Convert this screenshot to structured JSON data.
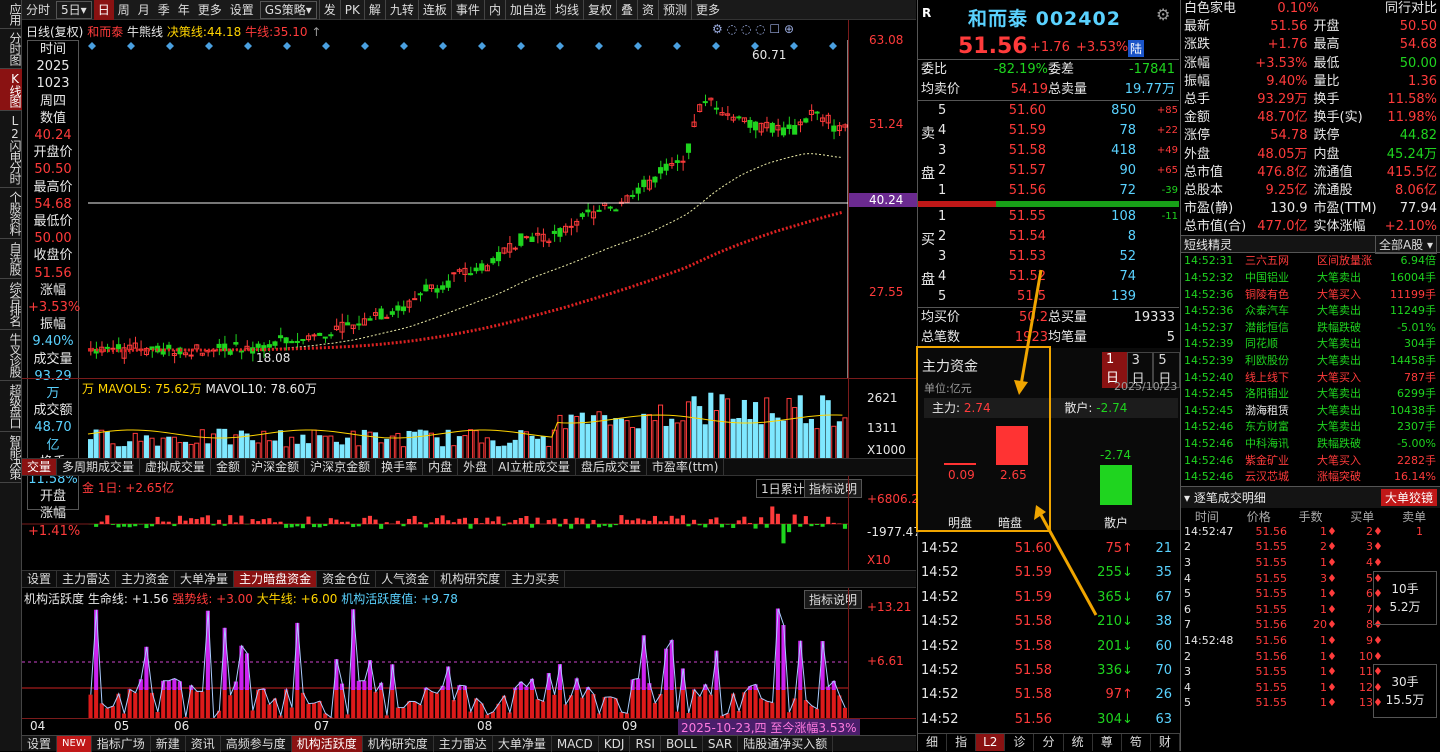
{
  "sidebar": [
    "应用",
    "分时图",
    "K线图",
    "L2闪电分时",
    "个股资料",
    "自选股",
    "综合排名",
    "牛叉诊股",
    "超级盘口",
    "智能决策"
  ],
  "toolbar": [
    "分时",
    "5日",
    "日",
    "周",
    "月",
    "季",
    "年",
    "更多",
    "设置",
    "GS策略",
    "发",
    "PK",
    "解",
    "九转",
    "连板",
    "事件",
    "内",
    "加自选",
    "均线",
    "复权",
    "叠",
    "资",
    "预测",
    "更多"
  ],
  "kline_header": {
    "prefix": "日线(复权)",
    "name": "和而泰",
    "ind1": "牛熊线",
    "ind2_label": "决策线:",
    "ind2": "44.18",
    "ind3": "牛线:",
    "ind3v": "35.10"
  },
  "price_axis": [
    "63.08",
    "51.24",
    "40.24",
    "27.55"
  ],
  "markers": {
    "high": "60.71",
    "low": "18.08"
  },
  "infobox": {
    "title": "时间",
    "date1": "2025",
    "date2": "1023",
    "weekday": "周四",
    "k1": "数值",
    "v1": "40.24",
    "k2": "开盘价",
    "v2": "50.50",
    "k3": "最高价",
    "v3": "54.68",
    "k4": "最低价",
    "v4": "50.00",
    "k5": "收盘价",
    "v5": "51.56",
    "k6": "涨幅",
    "v6": "+3.53%",
    "k7": "振幅",
    "v7": "9.40%",
    "k8": "成交量",
    "v8": "93.29万",
    "k9": "成交额",
    "v9": "48.70亿",
    "k10": "换手",
    "v10": "11.58%",
    "k11": "开盘",
    "k11b": "涨幅",
    "v11": "+1.41%"
  },
  "vol": {
    "lbl": "万",
    "ma5": "MAVOL5: 75.62万",
    "ma10": "MAVOL10: 78.60万",
    "axis": [
      "2621",
      "1311",
      "X1000"
    ]
  },
  "vol_tabs": [
    "交量",
    "多周期成交量",
    "虚拟成交量",
    "金额",
    "沪深金额",
    "沪深京金额",
    "换手率",
    "内盘",
    "外盘",
    "AI立桩成交量",
    "盘后成交量",
    "市盈率(ttm)"
  ],
  "flow": {
    "lbl": "金 1日: +2.65亿",
    "sel": "1日累计",
    "btn": "指标说明",
    "axis": [
      "+6806.27",
      "-1977.47",
      "X10"
    ]
  },
  "flow_tabs": [
    "设置",
    "主力雷达",
    "主力资金",
    "大单净量",
    "主力暗盘资金",
    "资金仓位",
    "人气资金",
    "机构研究度",
    "主力买卖"
  ],
  "act": {
    "title": "机构活跃度",
    "life": "生命线: +1.56",
    "strong": "强势线: +3.00",
    "bull": "大牛线: +6.00",
    "val": "机构活跃度值: +9.78",
    "btn": "指标说明",
    "axis": [
      "+13.21",
      "+6.61"
    ]
  },
  "xaxis": [
    "04",
    "05",
    "06",
    "07",
    "08",
    "09"
  ],
  "date_info": "2025-10-23,四 至今涨幅3.53%",
  "bottom_tabs": [
    "设置",
    "NEW",
    "指标广场",
    "新建",
    "资讯",
    "高频参与度",
    "机构活跃度",
    "机构研究度",
    "主力雷达",
    "大单净量",
    "MACD",
    "KDJ",
    "RSI",
    "BOLL",
    "SAR",
    "陆股通净买入额"
  ],
  "quote": {
    "title": "和而泰 002402",
    "price": "51.56",
    "chg": "+1.76",
    "pct": "+3.53%",
    "tag": "陆",
    "rows": [
      [
        "委比",
        "-82.19%",
        "委差",
        "-17841"
      ],
      [
        "均卖价",
        "54.19",
        "总卖量",
        "19.77万"
      ]
    ],
    "sells": [
      [
        "5",
        "51.60",
        "850",
        "+85"
      ],
      [
        "4",
        "51.59",
        "78",
        "+22"
      ],
      [
        "3",
        "51.58",
        "418",
        "+49"
      ],
      [
        "2",
        "51.57",
        "90",
        "+65"
      ],
      [
        "1",
        "51.56",
        "72",
        "-39"
      ]
    ],
    "buys": [
      [
        "1",
        "51.55",
        "108",
        "-11"
      ],
      [
        "2",
        "51.54",
        "8",
        ""
      ],
      [
        "3",
        "51.53",
        "52",
        ""
      ],
      [
        "4",
        "51.52",
        "74",
        ""
      ],
      [
        "5",
        "51.5",
        "139",
        ""
      ]
    ],
    "sell_lbl": [
      "卖",
      "盘"
    ],
    "buy_lbl": [
      "买",
      "盘"
    ],
    "rows2": [
      [
        "均买价",
        "50.2",
        "总买量",
        "19333"
      ],
      [
        "总笔数",
        "1923",
        "均笔量",
        "5"
      ]
    ]
  },
  "zl": {
    "title": "主力资金",
    "unit": "单位:亿元",
    "date": "2025/10/23",
    "tabs": [
      "1日",
      "3日",
      "5日"
    ],
    "main": "主力:",
    "mainv": "2.74",
    "retail": "散户:",
    "retailv": "-2.74",
    "v1": "0.09",
    "v2": "2.65",
    "v3": "-2.74",
    "l1": "明盘",
    "l2": "暗盘",
    "l3": "散户"
  },
  "ticks": [
    [
      "14:52",
      "51.60",
      "75",
      "21"
    ],
    [
      "14:52",
      "51.59",
      "255",
      "35"
    ],
    [
      "14:52",
      "51.59",
      "365",
      "67"
    ],
    [
      "14:52",
      "51.58",
      "210",
      "38"
    ],
    [
      "14:52",
      "51.58",
      "201",
      "60"
    ],
    [
      "14:52",
      "51.58",
      "336",
      "70"
    ],
    [
      "14:52",
      "51.58",
      "97",
      "26"
    ],
    [
      "14:52",
      "51.56",
      "304",
      "63"
    ]
  ],
  "ticks_dir": [
    "up",
    "down",
    "down",
    "down",
    "down",
    "down",
    "up",
    "down"
  ],
  "rp_tabs": [
    "细",
    "指",
    "L2",
    "诊",
    "分",
    "统",
    "尊",
    "笱",
    "财"
  ],
  "fund": [
    [
      "白色家电",
      "0.10%",
      "",
      "同行对比"
    ],
    [
      "最新",
      "51.56",
      "开盘",
      "50.50"
    ],
    [
      "涨跌",
      "+1.76",
      "最高",
      "54.68"
    ],
    [
      "涨幅",
      "+3.53%",
      "最低",
      "50.00"
    ],
    [
      "振幅",
      "9.40%",
      "量比",
      "1.36"
    ],
    [
      "总手",
      "93.29万",
      "换手",
      "11.58%"
    ],
    [
      "金额",
      "48.70亿",
      "换手(实)",
      "11.98%"
    ],
    [
      "涨停",
      "54.78",
      "跌停",
      "44.82"
    ],
    [
      "外盘",
      "48.05万",
      "内盘",
      "45.24万"
    ],
    [
      "总市值",
      "476.8亿",
      "流通值",
      "415.5亿"
    ],
    [
      "总股本",
      "9.25亿",
      "流通股",
      "8.06亿"
    ],
    [
      "市盈(静)",
      "130.9",
      "市盈(TTM)",
      "77.94"
    ],
    [
      "总市值(合)",
      "477.0亿",
      "实体涨幅",
      "+2.10%"
    ]
  ],
  "fund_cls": [
    [
      "wht",
      "red",
      "",
      "wht"
    ],
    [
      "wht",
      "red",
      "wht",
      "red"
    ],
    [
      "wht",
      "red",
      "wht",
      "red"
    ],
    [
      "wht",
      "red",
      "wht",
      "grn"
    ],
    [
      "wht",
      "red",
      "wht",
      "red"
    ],
    [
      "wht",
      "red",
      "wht",
      "red"
    ],
    [
      "wht",
      "red",
      "wht",
      "red"
    ],
    [
      "wht",
      "red",
      "wht",
      "grn"
    ],
    [
      "wht",
      "red",
      "wht",
      "grn"
    ],
    [
      "wht",
      "red",
      "wht",
      "red"
    ],
    [
      "wht",
      "red",
      "wht",
      "red"
    ],
    [
      "wht",
      "wht",
      "wht",
      "wht"
    ],
    [
      "wht",
      "red",
      "wht",
      "red"
    ]
  ],
  "sprite": {
    "title": "短线精灵",
    "sel": "全部A股",
    "rows": [
      [
        "14:52:31",
        "三六五网",
        "区间放量涨",
        "6.94倍"
      ],
      [
        "14:52:32",
        "中国铝业",
        "大笔卖出",
        "16004手"
      ],
      [
        "14:52:36",
        "铜陵有色",
        "大笔买入",
        "11199手"
      ],
      [
        "14:52:36",
        "众泰汽车",
        "大笔卖出",
        "11249手"
      ],
      [
        "14:52:37",
        "潜能恒信",
        "跌幅跌破",
        "-5.01%"
      ],
      [
        "14:52:39",
        "同花顺",
        "大笔卖出",
        "304手"
      ],
      [
        "14:52:39",
        "利欧股份",
        "大笔卖出",
        "14458手"
      ],
      [
        "14:52:40",
        "线上线下",
        "大笔买入",
        "787手"
      ],
      [
        "14:52:45",
        "洛阳钼业",
        "大笔卖出",
        "6299手"
      ],
      [
        "14:52:45",
        "渤海租赁",
        "大笔卖出",
        "10438手"
      ],
      [
        "14:52:46",
        "东方财富",
        "大笔卖出",
        "2307手"
      ],
      [
        "14:52:46",
        "中科海讯",
        "跌幅跌破",
        "-5.00%"
      ],
      [
        "14:52:46",
        "紫金矿业",
        "大笔买入",
        "2282手"
      ],
      [
        "14:52:46",
        "云汉芯城",
        "涨幅突破",
        "16.14%"
      ]
    ],
    "cls": [
      [
        "red",
        "red",
        "grn"
      ],
      [
        "grn",
        "grn",
        "grn"
      ],
      [
        "red",
        "red",
        "red"
      ],
      [
        "grn",
        "grn",
        "grn"
      ],
      [
        "grn",
        "grn",
        "grn"
      ],
      [
        "grn",
        "grn",
        "grn"
      ],
      [
        "grn",
        "grn",
        "grn"
      ],
      [
        "red",
        "red",
        "red"
      ],
      [
        "grn",
        "grn",
        "grn"
      ],
      [
        "wht",
        "grn",
        "grn"
      ],
      [
        "grn",
        "grn",
        "grn"
      ],
      [
        "grn",
        "grn",
        "grn"
      ],
      [
        "red",
        "red",
        "red"
      ],
      [
        "red",
        "red",
        "red"
      ]
    ]
  },
  "detail": {
    "title": "逐笔成交明细",
    "btn": "大单狡镜",
    "headers": [
      "时间",
      "价格",
      "手数",
      "买单",
      "卖单"
    ],
    "rows": [
      [
        "14:52:47",
        "51.56",
        "1",
        "2",
        "1"
      ],
      [
        "2",
        "51.55",
        "2",
        "3",
        ""
      ],
      [
        "3",
        "51.55",
        "1",
        "4",
        ""
      ],
      [
        "4",
        "51.55",
        "3",
        "5",
        ""
      ],
      [
        "5",
        "51.55",
        "1",
        "6",
        ""
      ],
      [
        "6",
        "51.55",
        "1",
        "7",
        ""
      ],
      [
        "7",
        "51.56",
        "20",
        "8",
        ""
      ],
      [
        "14:52:48",
        "51.56",
        "1",
        "9",
        ""
      ],
      [
        "2",
        "51.56",
        "1",
        "10",
        ""
      ],
      [
        "3",
        "51.55",
        "1",
        "11",
        ""
      ],
      [
        "4",
        "51.55",
        "1",
        "12",
        ""
      ],
      [
        "5",
        "51.55",
        "1",
        "13",
        ""
      ]
    ],
    "big1": [
      "10手",
      "5.2万"
    ],
    "big2": [
      "30手",
      "15.5万"
    ]
  }
}
